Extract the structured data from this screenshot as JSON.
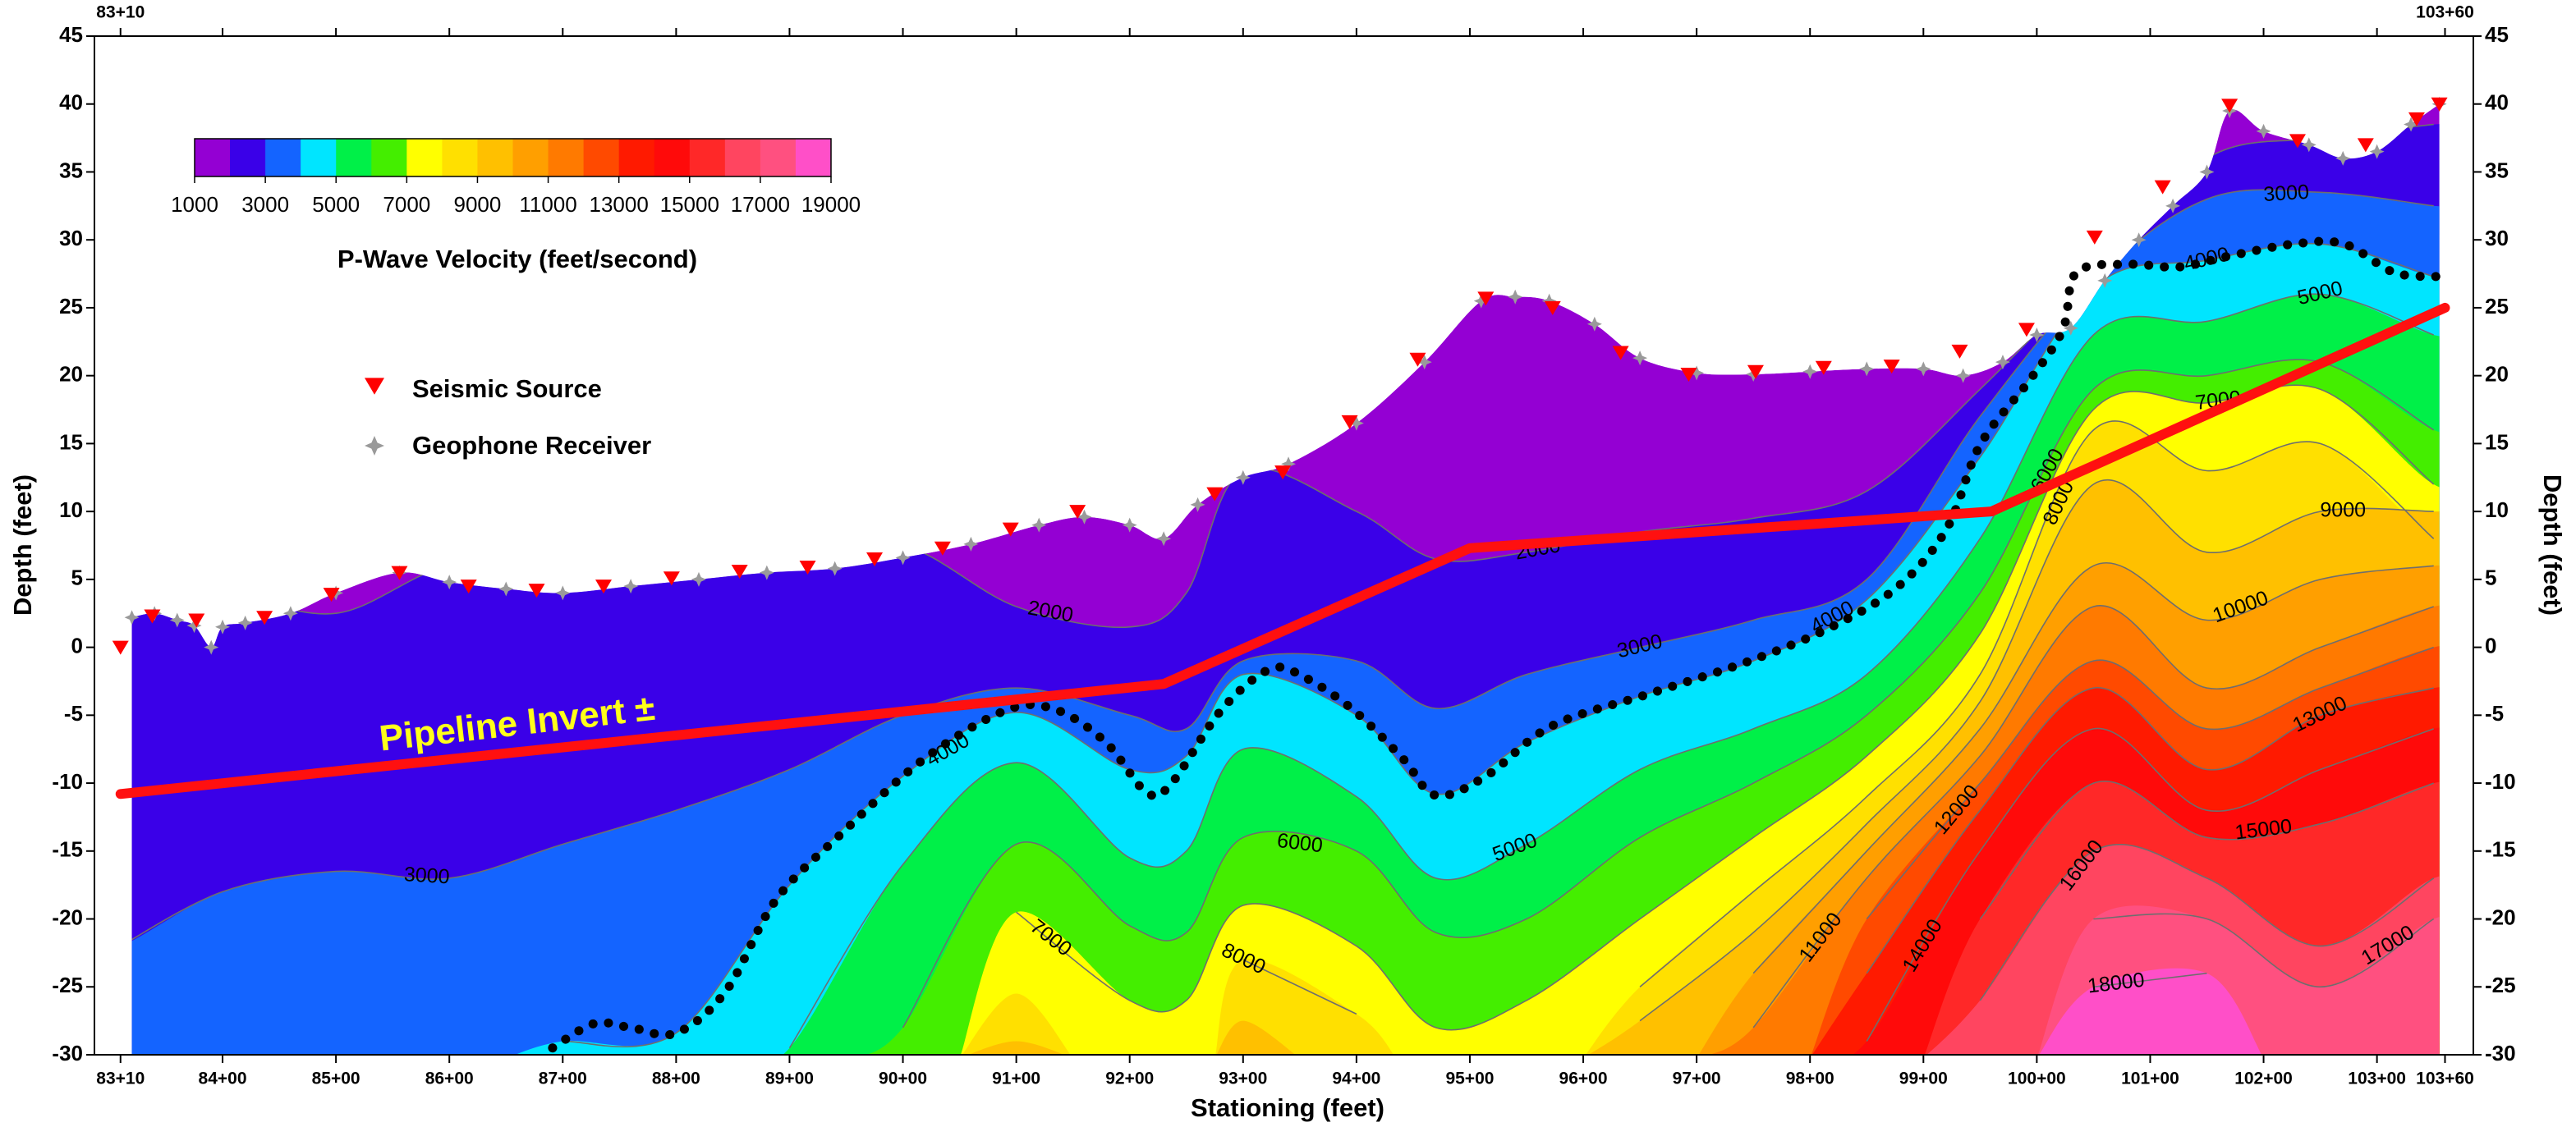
{
  "chart_data": {
    "type": "contour",
    "xlabel": "Stationing (feet)",
    "ylabel": "Depth (feet)",
    "y2label": "Depth (feet)",
    "annotation": "Pipeline Invert ±",
    "xlim": [
      8287,
      10385
    ],
    "ylim": [
      -30,
      45
    ],
    "xticks": [
      {
        "value": 8310,
        "label": "83+10"
      },
      {
        "value": 8400,
        "label": "84+00"
      },
      {
        "value": 8500,
        "label": "85+00"
      },
      {
        "value": 8600,
        "label": "86+00"
      },
      {
        "value": 8700,
        "label": "87+00"
      },
      {
        "value": 8800,
        "label": "88+00"
      },
      {
        "value": 8900,
        "label": "89+00"
      },
      {
        "value": 9000,
        "label": "90+00"
      },
      {
        "value": 9100,
        "label": "91+00"
      },
      {
        "value": 9200,
        "label": "92+00"
      },
      {
        "value": 9300,
        "label": "93+00"
      },
      {
        "value": 9400,
        "label": "94+00"
      },
      {
        "value": 9500,
        "label": "95+00"
      },
      {
        "value": 9600,
        "label": "96+00"
      },
      {
        "value": 9700,
        "label": "97+00"
      },
      {
        "value": 9800,
        "label": "98+00"
      },
      {
        "value": 9900,
        "label": "99+00"
      },
      {
        "value": 10000,
        "label": "100+00"
      },
      {
        "value": 10100,
        "label": "101+00"
      },
      {
        "value": 10200,
        "label": "102+00"
      },
      {
        "value": 10300,
        "label": "103+00"
      },
      {
        "value": 10360,
        "label": "103+60"
      }
    ],
    "yticks": [
      -30,
      -25,
      -20,
      -15,
      -10,
      -5,
      0,
      5,
      10,
      15,
      20,
      25,
      30,
      35,
      40,
      45
    ],
    "colorbar": {
      "label": "P-Wave Velocity (feet/second)",
      "clim": [
        1000,
        19000
      ],
      "ticks": [
        1000,
        3000,
        5000,
        7000,
        9000,
        11000,
        13000,
        15000,
        17000,
        19000
      ]
    },
    "base_color": "#9400d3",
    "grid_x": [
      8310,
      8400,
      8500,
      8600,
      8700,
      8800,
      8900,
      9000,
      9100,
      9200,
      9250,
      9300,
      9400,
      9470,
      9550,
      9650,
      9750,
      9850,
      9950,
      10050,
      10150,
      10250,
      10350
    ],
    "contours": [
      {
        "level": 2000,
        "color": "#3a00e8",
        "values": [
          4,
          4,
          2.5,
          6,
          5.5,
          6,
          7,
          7.5,
          3,
          1.5,
          4,
          13,
          10,
          6.5,
          7,
          8.5,
          9.5,
          11.5,
          19,
          27.5,
          36,
          37.5,
          38.5
        ]
      },
      {
        "level": 3000,
        "color": "#1464ff",
        "values": [
          -22,
          -18,
          -16.5,
          -17,
          -14.5,
          -12,
          -9,
          -5,
          -3,
          -5,
          -6,
          -1,
          -1,
          -4.5,
          -2,
          0,
          2,
          5,
          17,
          27,
          33,
          33.5,
          32.5
        ]
      },
      {
        "level": 4000,
        "color": "#00e5ff",
        "values": [
          null,
          null,
          null,
          null,
          -29,
          -28.4,
          -17.5,
          -9.5,
          -4.8,
          -9,
          -8,
          -2,
          -5,
          -10.8,
          -7,
          -3.6,
          -1,
          3.5,
          14,
          26.5,
          28.5,
          29.7,
          27.3
        ]
      },
      {
        "level": 5000,
        "color": "#00f048",
        "values": [
          null,
          null,
          null,
          null,
          null,
          null,
          -29.5,
          -16,
          -8.5,
          -15.5,
          -15,
          -7.5,
          -11,
          -17,
          -14.5,
          -9,
          -6,
          -2,
          8,
          23,
          24,
          26,
          23
        ]
      },
      {
        "level": 6000,
        "color": "#44ee00",
        "values": [
          null,
          null,
          null,
          null,
          null,
          null,
          null,
          -28,
          -14.5,
          -20.5,
          -21,
          -14,
          -15,
          -21,
          -20,
          -14,
          -10,
          -5,
          4,
          19,
          20,
          21,
          16
        ]
      },
      {
        "level": 7000,
        "color": "#ffff00",
        "values": [
          null,
          null,
          null,
          null,
          null,
          null,
          null,
          null,
          -19.5,
          -26,
          -26,
          -19,
          -22,
          -28,
          -26,
          -20,
          -14,
          -8,
          1,
          17.5,
          18,
          19,
          12
        ]
      },
      {
        "level": 8000,
        "color": "#ffe000",
        "values": [
          null,
          null,
          null,
          null,
          null,
          null,
          null,
          null,
          -25.5,
          null,
          null,
          -23,
          -27,
          null,
          null,
          -25,
          -18,
          -11,
          -2,
          16,
          13,
          15,
          8
        ]
      },
      {
        "level": 9000,
        "color": "#ffc000",
        "values": [
          null,
          null,
          null,
          null,
          null,
          null,
          null,
          null,
          -29,
          null,
          null,
          -27.5,
          null,
          null,
          null,
          -27.5,
          -21,
          -13,
          -4,
          12,
          7,
          10,
          10
        ]
      },
      {
        "level": 10000,
        "color": "#ff9f00",
        "values": [
          null,
          null,
          null,
          null,
          null,
          null,
          null,
          null,
          null,
          null,
          null,
          null,
          null,
          null,
          null,
          null,
          -24,
          -15,
          -6,
          6,
          2,
          5,
          6
        ]
      },
      {
        "level": 11000,
        "color": "#ff7a00",
        "values": [
          null,
          null,
          null,
          null,
          null,
          null,
          null,
          null,
          null,
          null,
          null,
          null,
          null,
          null,
          null,
          null,
          -28,
          -17,
          -8,
          3,
          -3,
          0,
          3
        ]
      },
      {
        "level": 12000,
        "color": "#ff4a00",
        "values": [
          null,
          null,
          null,
          null,
          null,
          null,
          null,
          null,
          null,
          null,
          null,
          null,
          null,
          null,
          null,
          null,
          null,
          -20,
          -10,
          -1,
          -6,
          -3,
          0
        ]
      },
      {
        "level": 13000,
        "color": "#ff1a00",
        "values": [
          null,
          null,
          null,
          null,
          null,
          null,
          null,
          null,
          null,
          null,
          null,
          null,
          null,
          null,
          null,
          null,
          null,
          -24,
          -12,
          -3,
          -9,
          -5,
          -3
        ]
      },
      {
        "level": 14000,
        "color": "#ff0a0a",
        "values": [
          null,
          null,
          null,
          null,
          null,
          null,
          null,
          null,
          null,
          null,
          null,
          null,
          null,
          null,
          null,
          null,
          null,
          -29,
          -15,
          -6,
          -12,
          -9,
          -6
        ]
      },
      {
        "level": 15000,
        "color": "#ff2828",
        "values": [
          null,
          null,
          null,
          null,
          null,
          null,
          null,
          null,
          null,
          null,
          null,
          null,
          null,
          null,
          null,
          null,
          null,
          null,
          -20,
          -10,
          -14,
          -13,
          -10
        ]
      },
      {
        "level": 16000,
        "color": "#ff4560",
        "values": [
          null,
          null,
          null,
          null,
          null,
          null,
          null,
          null,
          null,
          null,
          null,
          null,
          null,
          null,
          null,
          null,
          null,
          null,
          -26,
          -15,
          -17,
          -22,
          -17
        ]
      },
      {
        "level": 17000,
        "color": "#ff5080",
        "values": [
          null,
          null,
          null,
          null,
          null,
          null,
          null,
          null,
          null,
          null,
          null,
          null,
          null,
          null,
          null,
          null,
          null,
          null,
          null,
          -20,
          -20,
          -25,
          -20
        ]
      },
      {
        "level": 18000,
        "color": "#ff4fc8",
        "values": [
          null,
          null,
          null,
          null,
          null,
          null,
          null,
          null,
          null,
          null,
          null,
          null,
          null,
          null,
          null,
          null,
          null,
          null,
          null,
          -25,
          -24,
          null,
          null
        ]
      }
    ],
    "pipeline": {
      "color": "#ff1010",
      "x": [
        8310,
        9230,
        9500,
        9960,
        10360
      ],
      "y": [
        -10.8,
        -2.7,
        7.3,
        10,
        25
      ]
    },
    "bedrock_line": {
      "color": "#000000",
      "x": [
        8691,
        8728,
        8760,
        8800,
        8844,
        8888,
        8946,
        9019,
        9092,
        9135,
        9179,
        9215,
        9237,
        9281,
        9324,
        9354,
        9397,
        9441,
        9470,
        9514,
        9572,
        9659,
        9747,
        9819,
        9878,
        9921,
        9950,
        9994,
        10023,
        10035,
        10081,
        10125,
        10169,
        10227,
        10271,
        10315,
        10352
      ],
      "y": [
        -29.5,
        -27.7,
        -28,
        -28.4,
        -25.3,
        -18.6,
        -13.7,
        -8.2,
        -4.6,
        -4.6,
        -7,
        -10.7,
        -10,
        -4.6,
        -1.6,
        -2.2,
        -4.6,
        -8.2,
        -10.9,
        -9.5,
        -5.8,
        -3.4,
        -1,
        1.5,
        4.5,
        8.8,
        14.9,
        19.7,
        23.4,
        27.6,
        28.2,
        28,
        28.8,
        29.7,
        29.7,
        27.6,
        27.3
      ]
    },
    "series": [
      {
        "name": "Seismic Source",
        "color": "#ff0000",
        "x": [
          8310,
          8338,
          8377,
          8437,
          8496,
          8556,
          8617,
          8677,
          8736,
          8796,
          8856,
          8916,
          8975,
          9035,
          9095,
          9154,
          9275,
          9335,
          9394,
          9454,
          9514,
          9573,
          9633,
          9693,
          9752,
          9812,
          9872,
          9932,
          9991,
          10051,
          10111,
          10170,
          10230,
          10290,
          10335,
          10355
        ],
        "y": [
          0,
          2.3,
          2,
          2.2,
          3.9,
          5.5,
          4.5,
          4.2,
          4.5,
          5.1,
          5.6,
          5.9,
          6.5,
          7.3,
          8.7,
          10,
          11.3,
          12.9,
          16.6,
          21.2,
          25.7,
          25,
          21.7,
          20.1,
          20.3,
          20.6,
          20.7,
          21.8,
          23.4,
          30.2,
          33.9,
          39.9,
          37.3,
          37,
          38.9,
          40
        ]
      },
      {
        "name": "Geophone Receiver",
        "color": "#9a9a9a",
        "x": [
          8320,
          8340,
          8360,
          8375,
          8390,
          8400,
          8420,
          8460,
          8500,
          8556,
          8600,
          8650,
          8700,
          8760,
          8820,
          8880,
          8940,
          9000,
          9060,
          9120,
          9160,
          9200,
          9230,
          9260,
          9300,
          9340,
          9400,
          9460,
          9510,
          9540,
          9570,
          9610,
          9650,
          9700,
          9750,
          9800,
          9850,
          9900,
          9935,
          9970,
          10000,
          10030,
          10060,
          10090,
          10120,
          10150,
          10170,
          10200,
          10240,
          10270,
          10300,
          10330,
          10355
        ],
        "y": [
          2.2,
          2.5,
          2,
          1.6,
          0,
          1.5,
          1.8,
          2.5,
          4,
          5.5,
          4.8,
          4.3,
          4,
          4.5,
          5,
          5.5,
          5.8,
          6.6,
          7.6,
          9,
          9.6,
          9,
          8,
          10.5,
          12.5,
          13.5,
          16.5,
          21,
          25.5,
          25.8,
          25.5,
          23.8,
          21.3,
          20.2,
          20.1,
          20.3,
          20.5,
          20.5,
          20,
          21,
          23,
          23.5,
          27,
          30,
          32.5,
          35,
          39.5,
          38,
          37,
          36,
          36.5,
          38.5,
          40
        ]
      }
    ]
  }
}
